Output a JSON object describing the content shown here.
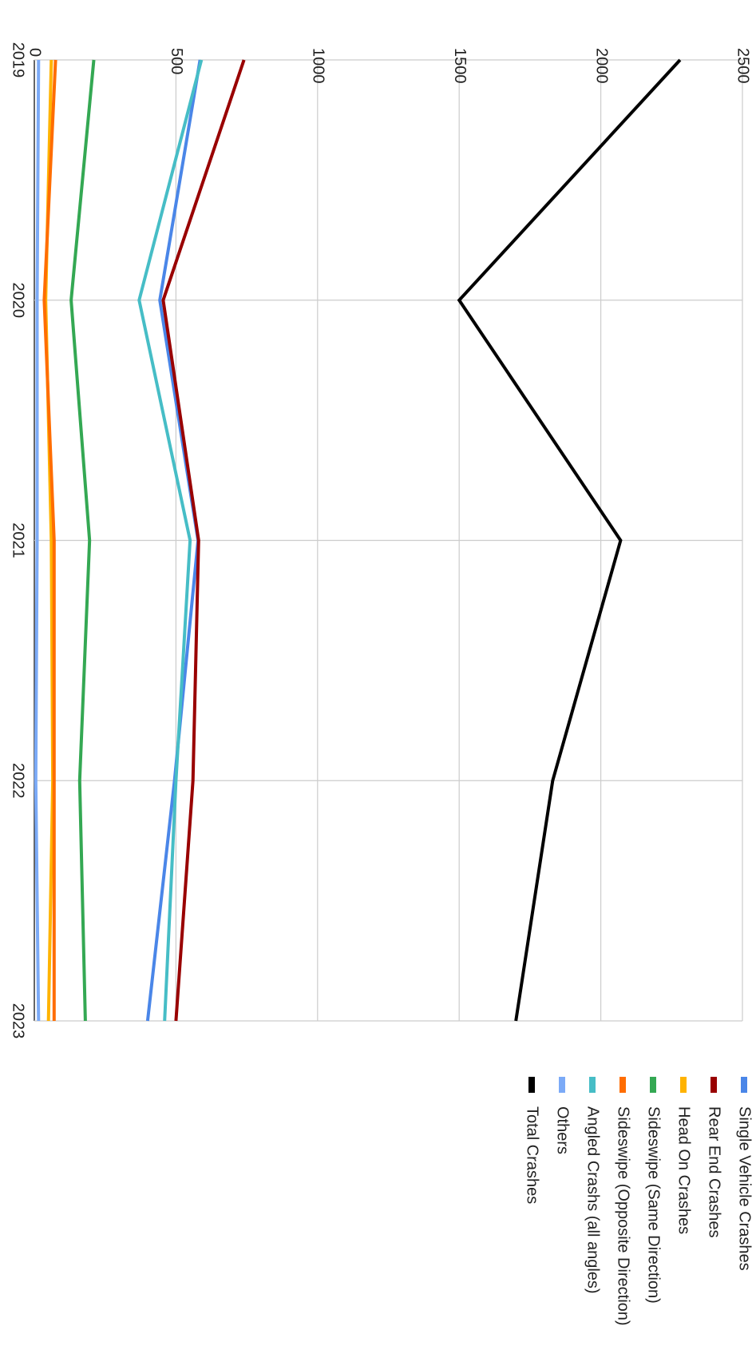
{
  "chart_data": {
    "type": "line",
    "title": "",
    "xlabel": "",
    "ylabel": "",
    "categories": [
      "2019",
      "2020",
      "2021",
      "2022",
      "2023"
    ],
    "ylim": [
      0,
      2500
    ],
    "y_ticks": [
      "0",
      "500",
      "1000",
      "1500",
      "2000",
      "2500"
    ],
    "grid": true,
    "legend_position": "right",
    "series": [
      {
        "name": "Single Vehicle Crashes",
        "color": "#4a86e8",
        "values": [
          585,
          443,
          578,
          495,
          400
        ]
      },
      {
        "name": "Rear End Crashes",
        "color": "#990000",
        "values": [
          740,
          455,
          580,
          560,
          500
        ]
      },
      {
        "name": "Head On Crashes",
        "color": "#ffb300",
        "values": [
          60,
          40,
          60,
          65,
          50
        ]
      },
      {
        "name": "Sideswipe (Same Direction)",
        "color": "#34a853",
        "values": [
          210,
          130,
          195,
          160,
          180
        ]
      },
      {
        "name": "Sideswipe (Opposite Direction)",
        "color": "#ff6d01",
        "values": [
          75,
          35,
          70,
          70,
          70
        ]
      },
      {
        "name": "Angled Crashs (all angles)",
        "color": "#46bdc6",
        "values": [
          590,
          370,
          550,
          500,
          460
        ]
      },
      {
        "name": "Others",
        "color": "#7baaf7",
        "values": [
          15,
          10,
          10,
          5,
          15
        ]
      },
      {
        "name": "Total Crashes",
        "color": "#000000",
        "values": [
          2280,
          1500,
          2070,
          1830,
          1700
        ]
      }
    ]
  }
}
